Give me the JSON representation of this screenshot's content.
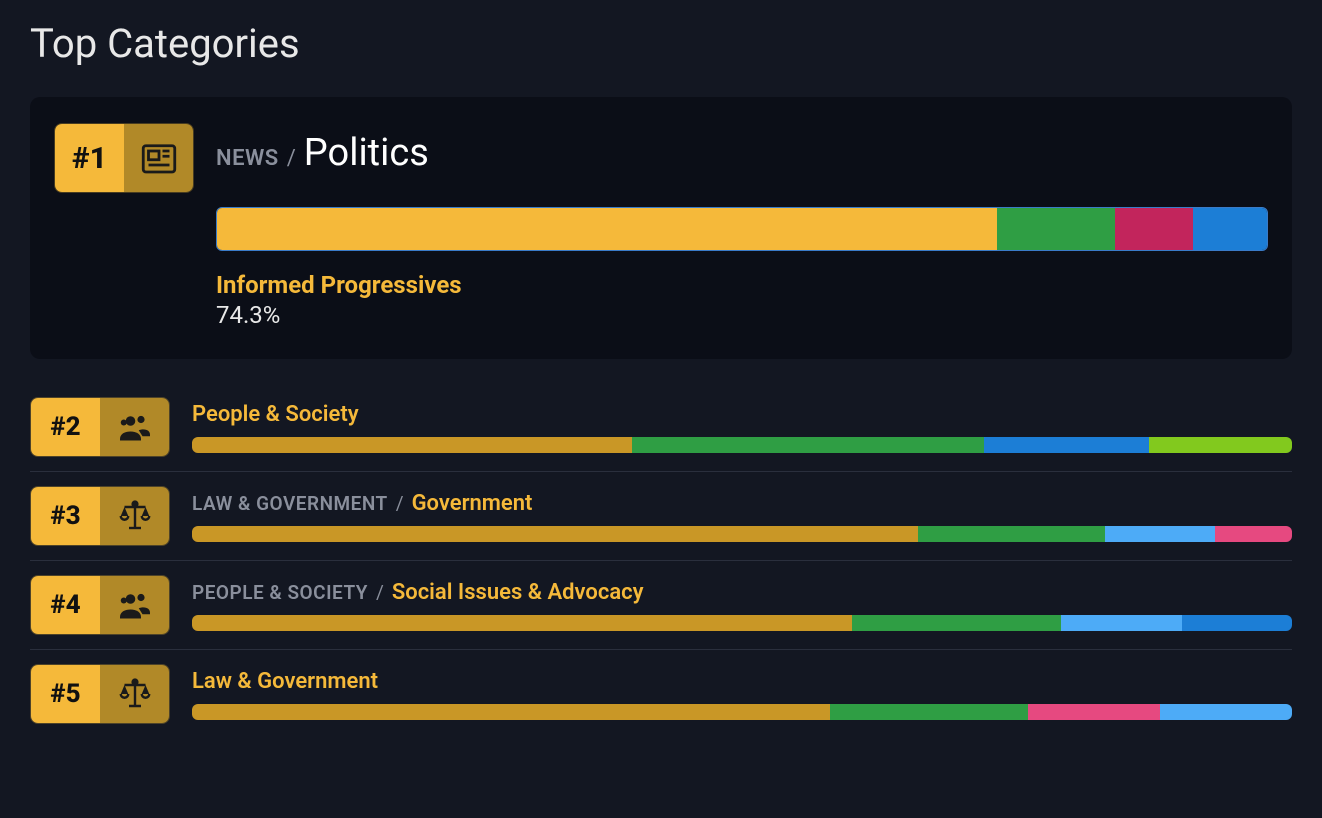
{
  "colors": {
    "page_bg": "#131722",
    "card_bg": "#0b0e17",
    "badge_left": "#f5b93a",
    "badge_right": "#b18928",
    "icon_stroke": "#1a1a1a",
    "heading_text": "#e8e8e8",
    "accent_text": "#f5b93a",
    "muted_text": "#8a8f9c",
    "divider": "#2a2f3d"
  },
  "heading": "Top Categories",
  "featured": {
    "rank": "#1",
    "icon": "newspaper",
    "parent": "NEWS",
    "name": "Politics",
    "name_color": "#ffffff",
    "segments": [
      {
        "color": "#f5b93a",
        "pct": 74.3
      },
      {
        "color": "#2f9e44",
        "pct": 11.2
      },
      {
        "color": "#c2255c",
        "pct": 7.5
      },
      {
        "color": "#1c7ed6",
        "pct": 7.0
      }
    ],
    "highlight_label": "Informed Progressives",
    "highlight_value": "74.3%"
  },
  "rows": [
    {
      "rank": "#2",
      "icon": "users",
      "parent": null,
      "name": "People & Society",
      "name_color": "#f5b93a",
      "segments": [
        {
          "color": "#c99726",
          "pct": 40
        },
        {
          "color": "#2f9e44",
          "pct": 32
        },
        {
          "color": "#1c7ed6",
          "pct": 15
        },
        {
          "color": "#82c91e",
          "pct": 13
        }
      ]
    },
    {
      "rank": "#3",
      "icon": "scales",
      "parent": "LAW & GOVERNMENT",
      "name": "Government",
      "name_color": "#f5b93a",
      "segments": [
        {
          "color": "#c99726",
          "pct": 66
        },
        {
          "color": "#2f9e44",
          "pct": 17
        },
        {
          "color": "#4dabf7",
          "pct": 10
        },
        {
          "color": "#e64980",
          "pct": 7
        }
      ]
    },
    {
      "rank": "#4",
      "icon": "users",
      "parent": "PEOPLE & SOCIETY",
      "name": "Social Issues & Advocacy",
      "name_color": "#f5b93a",
      "segments": [
        {
          "color": "#c99726",
          "pct": 60
        },
        {
          "color": "#2f9e44",
          "pct": 19
        },
        {
          "color": "#4dabf7",
          "pct": 11
        },
        {
          "color": "#1c7ed6",
          "pct": 10
        }
      ]
    },
    {
      "rank": "#5",
      "icon": "scales",
      "parent": null,
      "name": "Law & Government",
      "name_color": "#f5b93a",
      "segments": [
        {
          "color": "#c99726",
          "pct": 58
        },
        {
          "color": "#2f9e44",
          "pct": 18
        },
        {
          "color": "#e64980",
          "pct": 12
        },
        {
          "color": "#4dabf7",
          "pct": 12
        }
      ]
    }
  ]
}
